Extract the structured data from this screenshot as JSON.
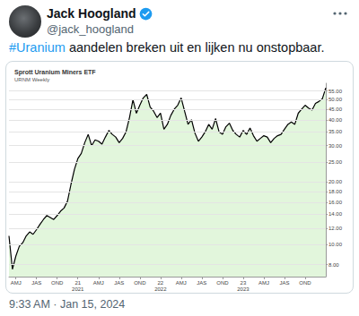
{
  "tweet": {
    "author": "Jack Hoogland",
    "handle": "@jack_hoogland",
    "hashtag": "#Uranium",
    "text": " aandelen breken uit en lijken nu onstopbaar.",
    "timestamp": "9:33 AM · Jan 15, 2024"
  },
  "chart_data": {
    "type": "area",
    "title": "Sprott Uranium Miners ETF",
    "subtitle": "URNM Weekly",
    "color": "#000000",
    "log": "y",
    "grid": true,
    "categories": [
      null,
      null,
      "AMJ",
      null,
      null,
      null,
      null,
      null,
      "JAS",
      null,
      null,
      null,
      null,
      null,
      "OND",
      null,
      null,
      null,
      null,
      null,
      "21\n2021",
      null,
      null,
      null,
      null,
      null,
      "AMJ",
      null,
      null,
      null,
      null,
      null,
      "JAS",
      null,
      null,
      null,
      null,
      null,
      "OND",
      null,
      null,
      null,
      null,
      null,
      "22\n2022",
      null,
      null,
      null,
      null,
      null,
      "AMJ",
      null,
      null,
      null,
      null,
      null,
      "JAS",
      null,
      null,
      null,
      null,
      null,
      "OND",
      null,
      null,
      null,
      null,
      null,
      "23\n2023",
      null,
      null,
      null,
      null,
      null,
      "AMJ",
      null,
      null,
      null,
      null,
      null,
      "JAS",
      null,
      null,
      null,
      null,
      null,
      "OND",
      null,
      null,
      null,
      null,
      null,
      null
    ],
    "values": [
      11.0,
      7.6,
      8.8,
      9.8,
      10.2,
      11.0,
      11.5,
      11.2,
      11.8,
      12.5,
      13.2,
      13.8,
      13.5,
      13.2,
      13.8,
      14.5,
      15.0,
      16.2,
      19.5,
      23.0,
      26.0,
      27.5,
      31.0,
      34.0,
      30.0,
      32.0,
      31.5,
      30.5,
      33.0,
      35.5,
      34.0,
      33.0,
      31.0,
      32.5,
      35.0,
      41.0,
      50.0,
      43.0,
      47.0,
      51.0,
      53.0,
      46.0,
      44.0,
      41.0,
      43.0,
      36.0,
      38.0,
      42.0,
      45.0,
      47.0,
      51.0,
      44.0,
      38.0,
      40.0,
      34.5,
      31.5,
      33.0,
      35.0,
      38.0,
      36.0,
      40.5,
      35.0,
      34.0,
      37.0,
      38.5,
      35.5,
      34.0,
      33.0,
      35.5,
      34.0,
      36.5,
      33.5,
      31.5,
      32.5,
      33.5,
      33.0,
      31.0,
      32.5,
      33.5,
      34.0,
      36.0,
      38.0,
      39.0,
      38.0,
      43.0,
      45.0,
      47.0,
      45.5,
      44.5,
      48.0,
      49.0,
      50.5,
      57.0
    ],
    "ylim": [
      7,
      60
    ],
    "yticks": [
      {
        "value": 8,
        "label": "8.00"
      },
      {
        "value": 10,
        "label": "10.00"
      },
      {
        "value": 12,
        "label": "12.00"
      },
      {
        "value": 14,
        "label": "14.00"
      },
      {
        "value": 16,
        "label": "16.00"
      },
      {
        "value": 18,
        "label": "18.00"
      },
      {
        "value": 20,
        "label": "20.00"
      },
      {
        "value": 25,
        "label": "25.00"
      },
      {
        "value": 30,
        "label": "30.00"
      },
      {
        "value": 35,
        "label": "35.00"
      },
      {
        "value": 40,
        "label": "40.00"
      },
      {
        "value": 45,
        "label": "45.00"
      },
      {
        "value": 50,
        "label": "50.00"
      },
      {
        "value": 55,
        "label": "55.00"
      }
    ]
  }
}
